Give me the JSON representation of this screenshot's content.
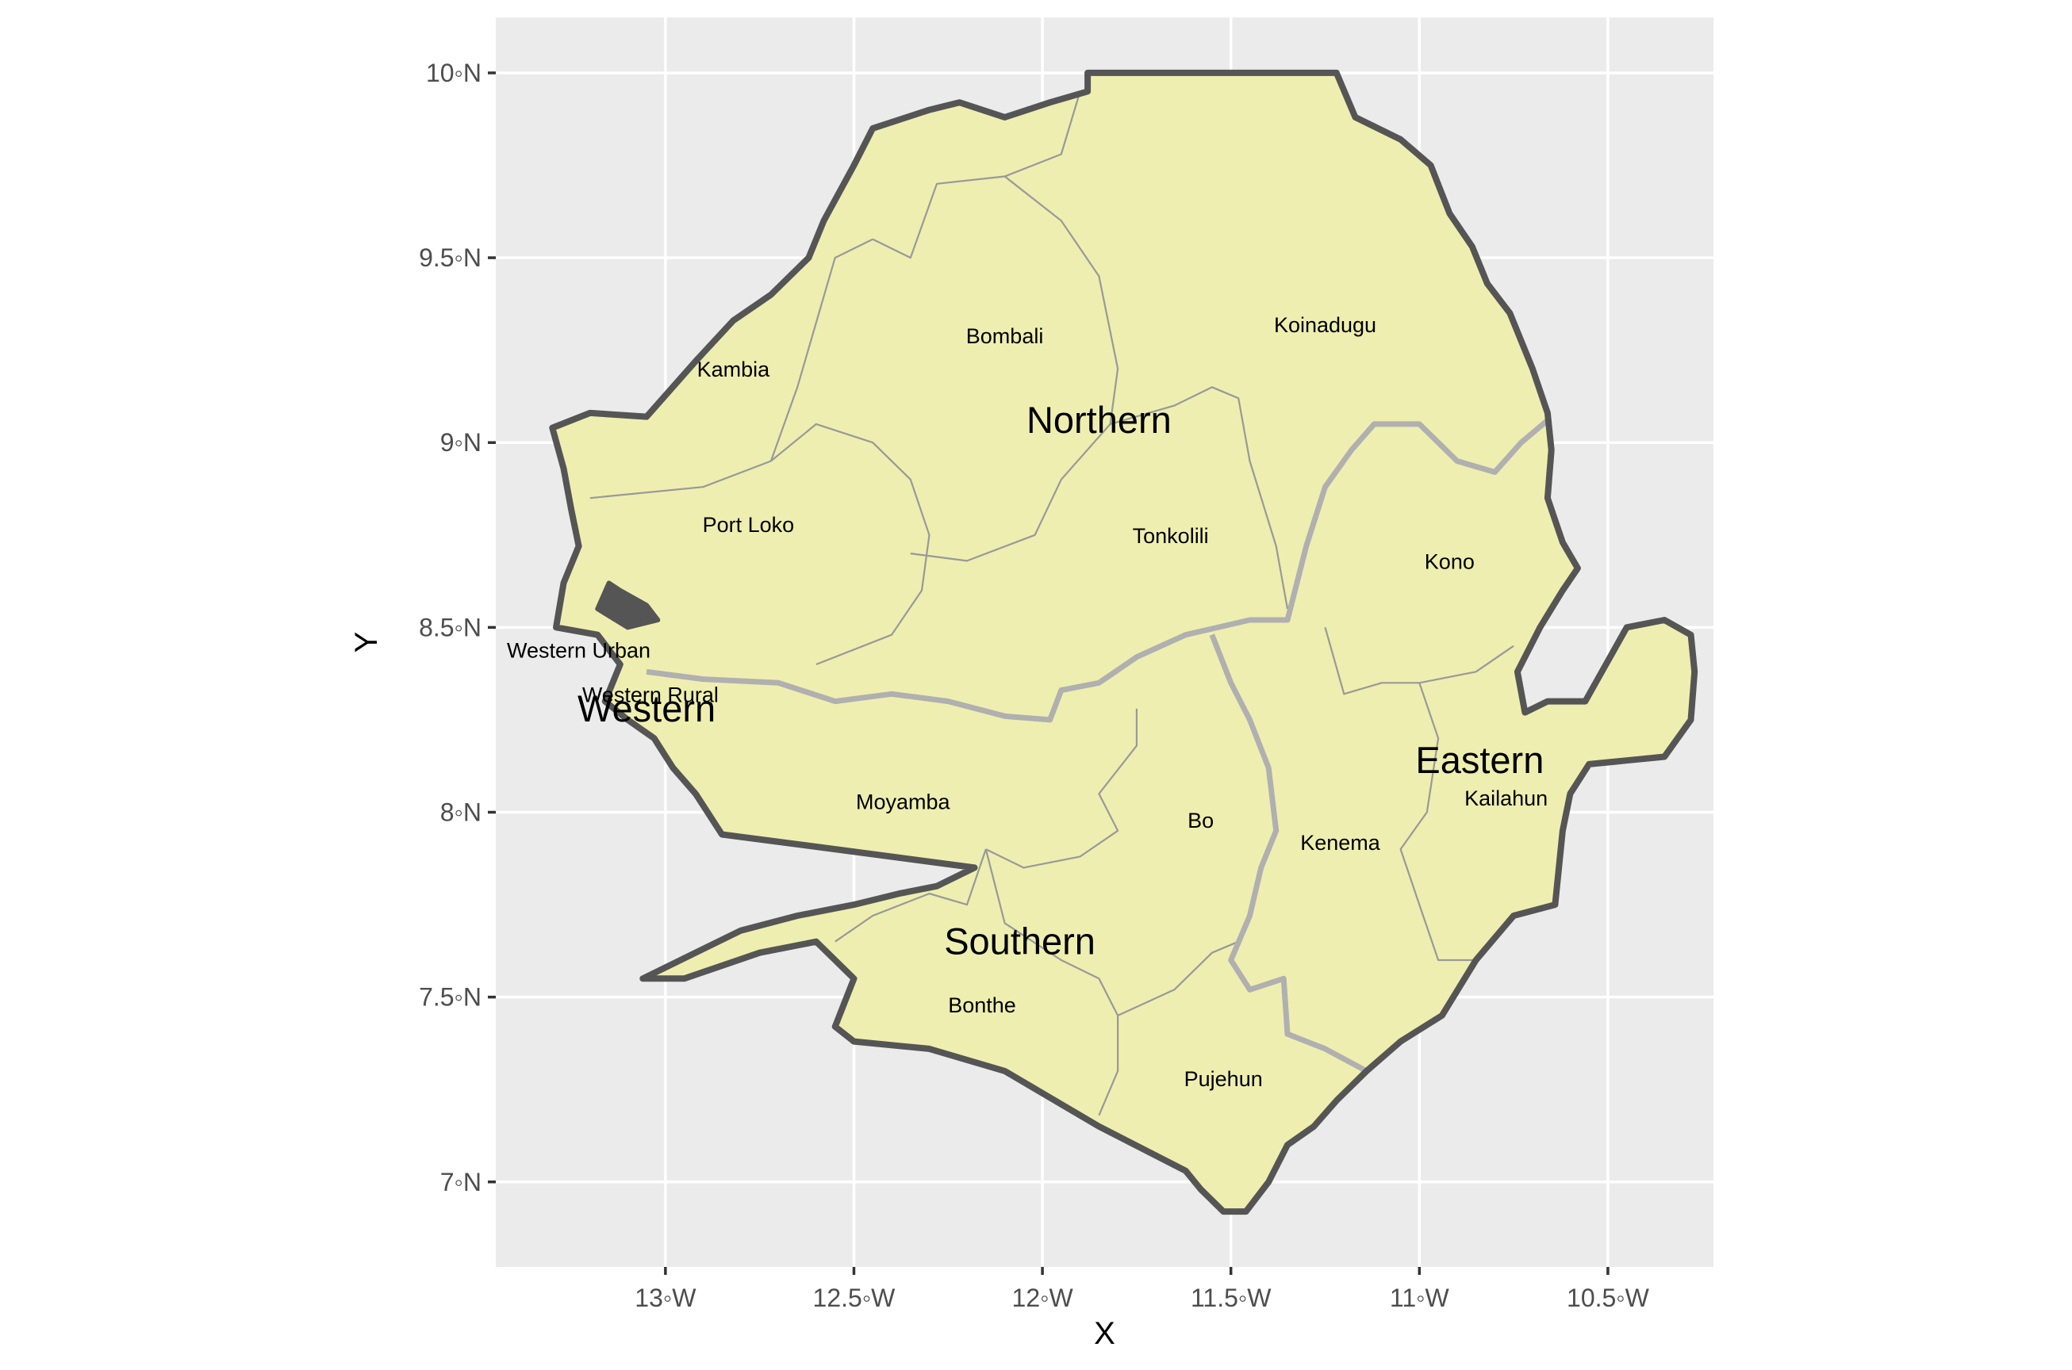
{
  "chart_data": {
    "type": "map",
    "xlabel": "X",
    "ylabel": "Y",
    "xlim": [
      -13.45,
      -10.22
    ],
    "ylim": [
      6.77,
      10.15
    ],
    "x_ticks": [
      {
        "value": -13.0,
        "label": "13◦W"
      },
      {
        "value": -12.5,
        "label": "12.5◦W"
      },
      {
        "value": -12.0,
        "label": "12◦W"
      },
      {
        "value": -11.5,
        "label": "11.5◦W"
      },
      {
        "value": -11.0,
        "label": "11◦W"
      },
      {
        "value": -10.5,
        "label": "10.5◦W"
      }
    ],
    "y_ticks": [
      {
        "value": 7.0,
        "label": "7◦N"
      },
      {
        "value": 7.5,
        "label": "7.5◦N"
      },
      {
        "value": 8.0,
        "label": "8◦N"
      },
      {
        "value": 8.5,
        "label": "8.5◦N"
      },
      {
        "value": 9.0,
        "label": "9◦N"
      },
      {
        "value": 9.5,
        "label": "9.5◦N"
      },
      {
        "value": 10.0,
        "label": "10◦N"
      }
    ],
    "grid": true,
    "colors": {
      "panel": "#ebebeb",
      "grid": "#ffffff",
      "land": "#eeeeb0",
      "country_border": "#555555",
      "province_border": "#b0b0b0",
      "district_border": "#999999"
    },
    "country_outline": [
      [
        -11.88,
        10.0
      ],
      [
        -11.22,
        10.0
      ],
      [
        -11.17,
        9.88
      ],
      [
        -11.05,
        9.82
      ],
      [
        -10.97,
        9.75
      ],
      [
        -10.92,
        9.62
      ],
      [
        -10.86,
        9.53
      ],
      [
        -10.82,
        9.43
      ],
      [
        -10.76,
        9.35
      ],
      [
        -10.7,
        9.2
      ],
      [
        -10.66,
        9.08
      ],
      [
        -10.65,
        8.98
      ],
      [
        -10.66,
        8.85
      ],
      [
        -10.62,
        8.73
      ],
      [
        -10.58,
        8.66
      ],
      [
        -10.62,
        8.6
      ],
      [
        -10.68,
        8.5
      ],
      [
        -10.74,
        8.38
      ],
      [
        -10.72,
        8.27
      ],
      [
        -10.66,
        8.3
      ],
      [
        -10.56,
        8.3
      ],
      [
        -10.45,
        8.5
      ],
      [
        -10.35,
        8.52
      ],
      [
        -10.28,
        8.48
      ],
      [
        -10.27,
        8.38
      ],
      [
        -10.28,
        8.25
      ],
      [
        -10.35,
        8.15
      ],
      [
        -10.45,
        8.14
      ],
      [
        -10.55,
        8.13
      ],
      [
        -10.6,
        8.05
      ],
      [
        -10.62,
        7.95
      ],
      [
        -10.64,
        7.75
      ],
      [
        -10.75,
        7.72
      ],
      [
        -10.85,
        7.6
      ],
      [
        -10.94,
        7.45
      ],
      [
        -11.05,
        7.38
      ],
      [
        -11.14,
        7.3
      ],
      [
        -11.22,
        7.22
      ],
      [
        -11.28,
        7.15
      ],
      [
        -11.35,
        7.1
      ],
      [
        -11.4,
        7.0
      ],
      [
        -11.46,
        6.92
      ],
      [
        -11.52,
        6.92
      ],
      [
        -11.58,
        6.98
      ],
      [
        -11.62,
        7.03
      ],
      [
        -11.85,
        7.15
      ],
      [
        -12.1,
        7.3
      ],
      [
        -12.3,
        7.36
      ],
      [
        -12.5,
        7.38
      ],
      [
        -12.55,
        7.42
      ],
      [
        -12.5,
        7.55
      ],
      [
        -12.6,
        7.65
      ],
      [
        -12.75,
        7.62
      ],
      [
        -12.95,
        7.55
      ],
      [
        -13.06,
        7.55
      ],
      [
        -12.8,
        7.68
      ],
      [
        -12.65,
        7.72
      ],
      [
        -12.5,
        7.75
      ],
      [
        -12.38,
        7.78
      ],
      [
        -12.28,
        7.8
      ],
      [
        -12.18,
        7.85
      ],
      [
        -12.55,
        7.9
      ],
      [
        -12.85,
        7.94
      ],
      [
        -12.92,
        8.05
      ],
      [
        -12.98,
        8.12
      ],
      [
        -13.03,
        8.2
      ],
      [
        -13.1,
        8.25
      ],
      [
        -13.16,
        8.3
      ],
      [
        -13.12,
        8.4
      ],
      [
        -13.18,
        8.48
      ],
      [
        -13.29,
        8.5
      ],
      [
        -13.27,
        8.62
      ],
      [
        -13.23,
        8.72
      ],
      [
        -13.25,
        8.82
      ],
      [
        -13.27,
        8.93
      ],
      [
        -13.3,
        9.04
      ],
      [
        -13.2,
        9.08
      ],
      [
        -13.05,
        9.07
      ],
      [
        -12.92,
        9.22
      ],
      [
        -12.82,
        9.33
      ],
      [
        -12.72,
        9.4
      ],
      [
        -12.62,
        9.5
      ],
      [
        -12.58,
        9.6
      ],
      [
        -12.5,
        9.75
      ],
      [
        -12.45,
        9.85
      ],
      [
        -12.3,
        9.9
      ],
      [
        -12.22,
        9.92
      ],
      [
        -12.1,
        9.88
      ],
      [
        -11.98,
        9.92
      ],
      [
        -11.88,
        9.95
      ],
      [
        -11.88,
        10.0
      ]
    ],
    "province_borders": [
      [
        [
          -13.05,
          8.38
        ],
        [
          -12.9,
          8.36
        ],
        [
          -12.7,
          8.35
        ],
        [
          -12.55,
          8.3
        ],
        [
          -12.4,
          8.32
        ],
        [
          -12.25,
          8.3
        ],
        [
          -12.1,
          8.26
        ],
        [
          -11.98,
          8.25
        ],
        [
          -11.95,
          8.33
        ],
        [
          -11.85,
          8.35
        ],
        [
          -11.75,
          8.42
        ],
        [
          -11.62,
          8.48
        ],
        [
          -11.45,
          8.52
        ],
        [
          -11.35,
          8.52
        ],
        [
          -11.33,
          8.6
        ],
        [
          -11.3,
          8.72
        ],
        [
          -11.25,
          8.88
        ],
        [
          -11.18,
          8.98
        ],
        [
          -11.12,
          9.05
        ],
        [
          -11.0,
          9.05
        ],
        [
          -10.9,
          8.95
        ],
        [
          -10.8,
          8.92
        ],
        [
          -10.73,
          9.0
        ],
        [
          -10.66,
          9.06
        ]
      ],
      [
        [
          -11.55,
          8.48
        ],
        [
          -11.5,
          8.35
        ],
        [
          -11.45,
          8.25
        ],
        [
          -11.4,
          8.12
        ],
        [
          -11.38,
          7.95
        ],
        [
          -11.42,
          7.85
        ],
        [
          -11.45,
          7.72
        ],
        [
          -11.5,
          7.6
        ],
        [
          -11.45,
          7.52
        ],
        [
          -11.36,
          7.55
        ],
        [
          -11.35,
          7.4
        ],
        [
          -11.25,
          7.36
        ],
        [
          -11.14,
          7.3
        ]
      ]
    ],
    "district_borders": [
      [
        [
          -12.72,
          8.95
        ],
        [
          -12.9,
          8.88
        ],
        [
          -13.2,
          8.85
        ]
      ],
      [
        [
          -12.72,
          8.95
        ],
        [
          -12.6,
          9.05
        ],
        [
          -12.45,
          9.0
        ],
        [
          -12.35,
          8.9
        ],
        [
          -12.3,
          8.75
        ],
        [
          -12.32,
          8.6
        ],
        [
          -12.4,
          8.48
        ],
        [
          -12.6,
          8.4
        ]
      ],
      [
        [
          -12.72,
          8.95
        ],
        [
          -12.65,
          9.15
        ],
        [
          -12.55,
          9.5
        ],
        [
          -12.45,
          9.55
        ]
      ],
      [
        [
          -12.45,
          9.55
        ],
        [
          -12.35,
          9.5
        ],
        [
          -12.28,
          9.7
        ],
        [
          -12.1,
          9.72
        ],
        [
          -11.95,
          9.78
        ],
        [
          -11.9,
          9.95
        ]
      ],
      [
        [
          -12.1,
          9.72
        ],
        [
          -11.95,
          9.6
        ],
        [
          -11.85,
          9.45
        ],
        [
          -11.8,
          9.2
        ],
        [
          -11.82,
          9.05
        ],
        [
          -11.95,
          8.9
        ],
        [
          -12.02,
          8.75
        ],
        [
          -12.2,
          8.68
        ],
        [
          -12.35,
          8.7
        ]
      ],
      [
        [
          -11.82,
          9.05
        ],
        [
          -11.65,
          9.1
        ],
        [
          -11.55,
          9.15
        ],
        [
          -11.48,
          9.12
        ],
        [
          -11.45,
          8.95
        ],
        [
          -11.38,
          8.72
        ],
        [
          -11.35,
          8.55
        ]
      ],
      [
        [
          -11.25,
          8.5
        ],
        [
          -11.2,
          8.32
        ],
        [
          -11.1,
          8.35
        ],
        [
          -11.0,
          8.35
        ],
        [
          -10.85,
          8.38
        ],
        [
          -10.75,
          8.45
        ]
      ],
      [
        [
          -11.0,
          8.35
        ],
        [
          -10.95,
          8.2
        ],
        [
          -10.98,
          8.0
        ],
        [
          -11.05,
          7.9
        ],
        [
          -11.0,
          7.75
        ],
        [
          -10.95,
          7.6
        ],
        [
          -10.85,
          7.6
        ]
      ],
      [
        [
          -12.15,
          7.9
        ],
        [
          -12.05,
          7.85
        ],
        [
          -11.9,
          7.88
        ],
        [
          -11.8,
          7.95
        ],
        [
          -11.85,
          8.05
        ],
        [
          -11.75,
          8.18
        ],
        [
          -11.75,
          8.28
        ]
      ],
      [
        [
          -12.15,
          7.9
        ],
        [
          -12.2,
          7.75
        ],
        [
          -12.3,
          7.78
        ],
        [
          -12.45,
          7.72
        ],
        [
          -12.55,
          7.65
        ]
      ],
      [
        [
          -12.15,
          7.9
        ],
        [
          -12.1,
          7.7
        ],
        [
          -11.95,
          7.6
        ],
        [
          -11.85,
          7.55
        ],
        [
          -11.8,
          7.45
        ],
        [
          -11.8,
          7.3
        ],
        [
          -11.85,
          7.18
        ]
      ],
      [
        [
          -11.8,
          7.45
        ],
        [
          -11.65,
          7.52
        ],
        [
          -11.55,
          7.62
        ],
        [
          -11.48,
          7.65
        ]
      ]
    ],
    "islands": [
      [
        -13.12,
        8.6
      ],
      [
        -13.05,
        8.56
      ],
      [
        -13.02,
        8.52
      ],
      [
        -13.1,
        8.5
      ],
      [
        -13.18,
        8.55
      ],
      [
        -13.15,
        8.62
      ]
    ],
    "district_labels": [
      {
        "name": "Kambia",
        "lon": -12.82,
        "lat": 9.2
      },
      {
        "name": "Bombali",
        "lon": -12.1,
        "lat": 9.29
      },
      {
        "name": "Koinadugu",
        "lon": -11.25,
        "lat": 9.32
      },
      {
        "name": "Port Loko",
        "lon": -12.78,
        "lat": 8.78
      },
      {
        "name": "Tonkolili",
        "lon": -11.66,
        "lat": 8.75
      },
      {
        "name": "Kono",
        "lon": -10.92,
        "lat": 8.68
      },
      {
        "name": "Western Urban",
        "lon": -13.23,
        "lat": 8.44
      },
      {
        "name": "Western Rural",
        "lon": -13.04,
        "lat": 8.32
      },
      {
        "name": "Moyamba",
        "lon": -12.37,
        "lat": 8.03
      },
      {
        "name": "Bo",
        "lon": -11.58,
        "lat": 7.98
      },
      {
        "name": "Kenema",
        "lon": -11.21,
        "lat": 7.92
      },
      {
        "name": "Kailahun",
        "lon": -10.77,
        "lat": 8.04
      },
      {
        "name": "Bonthe",
        "lon": -12.16,
        "lat": 7.48
      },
      {
        "name": "Pujehun",
        "lon": -11.52,
        "lat": 7.28
      }
    ],
    "province_labels": [
      {
        "name": "Northern",
        "lon": -11.85,
        "lat": 9.06
      },
      {
        "name": "Western",
        "lon": -13.05,
        "lat": 8.28
      },
      {
        "name": "Eastern",
        "lon": -10.84,
        "lat": 8.14
      },
      {
        "name": "Southern",
        "lon": -12.06,
        "lat": 7.65
      }
    ]
  }
}
